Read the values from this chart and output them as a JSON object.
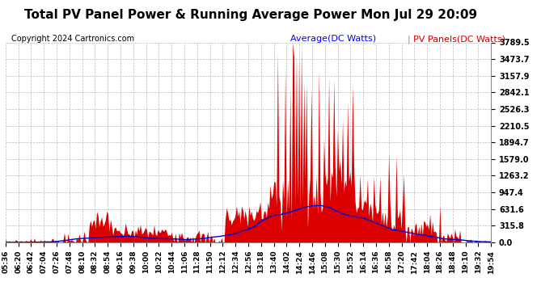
{
  "title": "Total PV Panel Power & Running Average Power Mon Jul 29 20:09",
  "copyright": "Copyright 2024 Cartronics.com",
  "legend_avg": "Average(DC Watts)",
  "legend_pv": "PV Panels(DC Watts)",
  "yticks": [
    0.0,
    315.8,
    631.6,
    947.4,
    1263.2,
    1579.0,
    1894.7,
    2210.5,
    2526.3,
    2842.1,
    3157.9,
    3473.7,
    3789.5
  ],
  "ymax": 3789.5,
  "ymin": 0.0,
  "background_color": "#ffffff",
  "plot_bg_color": "#ffffff",
  "grid_color": "#aaaaaa",
  "fill_color": "#dd0000",
  "line_color": "#0000cc",
  "title_color": "#000000",
  "copyright_color": "#000000",
  "avg_label_color": "#0000ff",
  "pv_label_color": "#cc0000",
  "title_fontsize": 11,
  "copyright_fontsize": 7,
  "legend_fontsize": 8,
  "tick_fontsize": 6.5,
  "ytick_fontsize": 7,
  "x_labels": [
    "05:36",
    "06:20",
    "06:42",
    "07:04",
    "07:26",
    "07:48",
    "08:10",
    "08:32",
    "08:54",
    "09:16",
    "09:38",
    "10:00",
    "10:22",
    "10:44",
    "11:06",
    "11:28",
    "11:50",
    "12:12",
    "12:34",
    "12:56",
    "13:18",
    "13:40",
    "14:02",
    "14:24",
    "14:46",
    "15:08",
    "15:30",
    "15:52",
    "16:14",
    "16:36",
    "16:58",
    "17:20",
    "17:42",
    "18:04",
    "18:26",
    "18:48",
    "19:10",
    "19:32",
    "19:54"
  ]
}
